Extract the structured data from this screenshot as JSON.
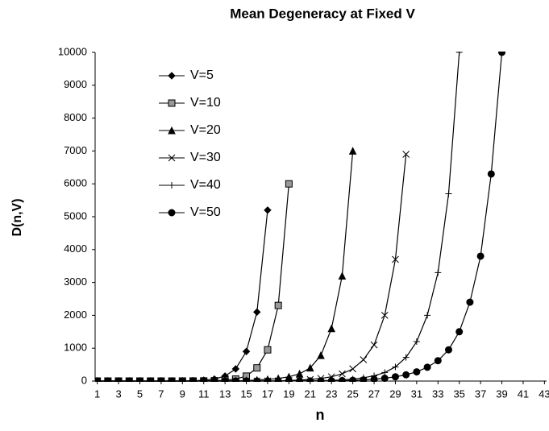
{
  "chart_data": {
    "type": "line",
    "title": "Mean Degeneracy at Fixed V",
    "x_label": "n",
    "y_label": "D(n,V)",
    "x": [
      1,
      2,
      3,
      4,
      5,
      6,
      7,
      8,
      9,
      10,
      11,
      12,
      13,
      14,
      15,
      16,
      17,
      18,
      19,
      20,
      21,
      22,
      23,
      24,
      25,
      26,
      27,
      28,
      29,
      30,
      31,
      32,
      33,
      34,
      35,
      36,
      37,
      38,
      39
    ],
    "xlim": [
      0.8,
      43.2
    ],
    "xticks": [
      1,
      3,
      5,
      7,
      9,
      11,
      13,
      15,
      17,
      19,
      21,
      23,
      25,
      27,
      29,
      31,
      33,
      35,
      37,
      39,
      41,
      43
    ],
    "ylim": [
      0,
      10000
    ],
    "yticks": [
      0,
      1000,
      2000,
      3000,
      4000,
      5000,
      6000,
      7000,
      8000,
      9000,
      10000
    ],
    "grid": false,
    "legend": "upper left",
    "series": [
      {
        "name": "V=5",
        "color": "#000000",
        "marker": "diamond",
        "values": [
          0,
          0,
          0,
          0,
          0,
          0,
          1,
          2,
          4,
          10,
          25,
          60,
          150,
          370,
          900,
          2100,
          5200,
          null,
          null,
          null,
          null,
          null,
          null,
          null,
          null,
          null,
          null,
          null,
          null,
          null,
          null,
          null,
          null,
          null,
          null,
          null,
          null,
          null,
          null
        ]
      },
      {
        "name": "V=10",
        "color": "#000000",
        "marker": "square",
        "values": [
          0,
          0,
          0,
          0,
          0,
          0,
          0,
          0,
          1,
          2,
          4,
          10,
          25,
          60,
          150,
          400,
          950,
          2300,
          6000,
          null,
          null,
          null,
          null,
          null,
          null,
          null,
          null,
          null,
          null,
          null,
          null,
          null,
          null,
          null,
          null,
          null,
          null,
          null,
          null
        ]
      },
      {
        "name": "V=20",
        "color": "#000000",
        "marker": "triangle",
        "values": [
          0,
          0,
          0,
          0,
          0,
          0,
          0,
          0,
          0,
          0,
          1,
          2,
          4,
          8,
          15,
          30,
          50,
          80,
          130,
          220,
          400,
          780,
          1600,
          3200,
          7000,
          null,
          null,
          null,
          null,
          null,
          null,
          null,
          null,
          null,
          null,
          null,
          null,
          null,
          null
        ]
      },
      {
        "name": "V=30",
        "color": "#000000",
        "marker": "x",
        "values": [
          0,
          0,
          0,
          0,
          0,
          0,
          0,
          0,
          0,
          0,
          0,
          0,
          0,
          0,
          1,
          2,
          4,
          8,
          15,
          30,
          50,
          80,
          130,
          220,
          370,
          650,
          1100,
          2000,
          3700,
          6900,
          null,
          null,
          null,
          null,
          null,
          null,
          null,
          null,
          null
        ]
      },
      {
        "name": "V=40",
        "color": "#000000",
        "marker": "plus",
        "values": [
          0,
          0,
          0,
          0,
          0,
          0,
          0,
          0,
          0,
          0,
          0,
          0,
          0,
          0,
          0,
          0,
          0,
          1,
          2,
          4,
          7,
          12,
          20,
          35,
          60,
          100,
          160,
          260,
          430,
          720,
          1200,
          2000,
          3300,
          5700,
          10000,
          null,
          null,
          null,
          null
        ]
      },
      {
        "name": "V=50",
        "color": "#000000",
        "marker": "circle",
        "values": [
          0,
          0,
          0,
          0,
          0,
          0,
          0,
          0,
          0,
          0,
          0,
          0,
          0,
          0,
          0,
          0,
          0,
          0,
          1,
          2,
          4,
          6,
          9,
          14,
          22,
          35,
          55,
          85,
          130,
          190,
          280,
          420,
          620,
          950,
          1500,
          2400,
          3800,
          6300,
          10000
        ]
      }
    ]
  }
}
